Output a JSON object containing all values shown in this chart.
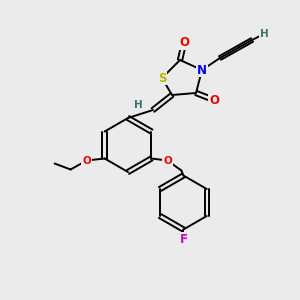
{
  "bg_color": "#ebebeb",
  "atom_colors": {
    "S": "#b8b800",
    "N": "#0000ee",
    "O": "#ee0000",
    "F": "#cc00cc",
    "C": "#303030",
    "H": "#407070"
  },
  "bond_lw": 1.4,
  "font_size_hetero": 8.5,
  "font_size_small": 7.5
}
